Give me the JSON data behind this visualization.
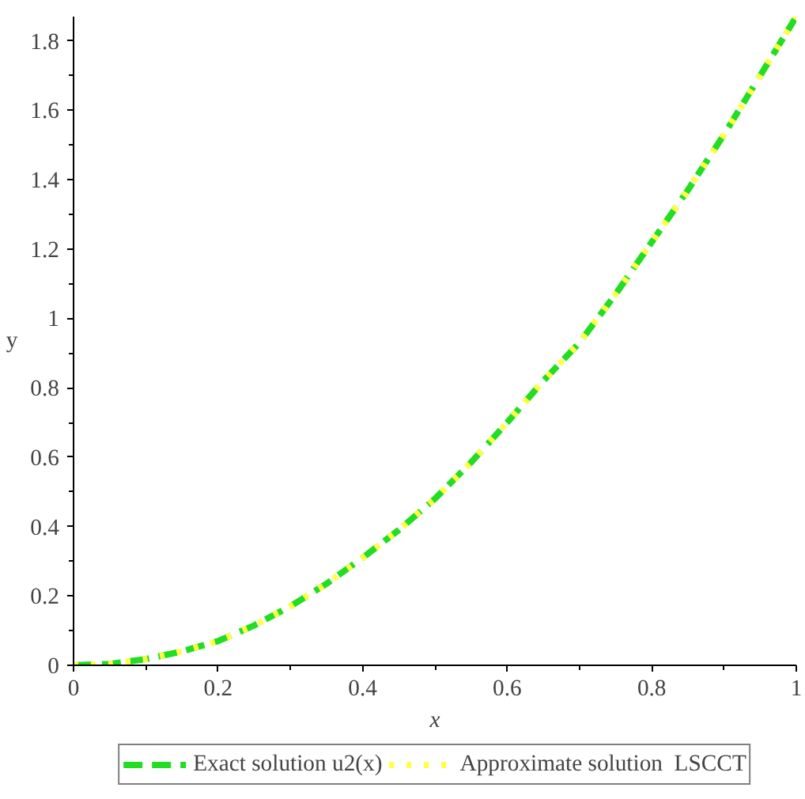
{
  "chart_data": {
    "type": "line",
    "xlabel": "x",
    "ylabel": "y",
    "x": [
      0,
      0.05,
      0.1,
      0.15,
      0.2,
      0.25,
      0.3,
      0.35,
      0.4,
      0.45,
      0.5,
      0.55,
      0.6,
      0.65,
      0.7,
      0.75,
      0.8,
      0.85,
      0.9,
      0.95,
      1
    ],
    "series": [
      {
        "name": "Exact solution u2(x)",
        "color": "#22dd22",
        "line_style": "dashed",
        "values": [
          0,
          0.004,
          0.018,
          0.04,
          0.07,
          0.115,
          0.17,
          0.235,
          0.31,
          0.39,
          0.48,
          0.585,
          0.7,
          0.82,
          0.93,
          1.07,
          1.22,
          1.37,
          1.53,
          1.7,
          1.87
        ]
      },
      {
        "name": "Approximate solution  LSCCT",
        "color": "#ffff44",
        "line_style": "dotted",
        "values": [
          0,
          0.004,
          0.018,
          0.04,
          0.07,
          0.115,
          0.17,
          0.235,
          0.31,
          0.39,
          0.48,
          0.585,
          0.7,
          0.82,
          0.93,
          1.07,
          1.22,
          1.37,
          1.53,
          1.7,
          1.87
        ]
      }
    ],
    "xlim": [
      0,
      1
    ],
    "ylim": [
      0,
      1.87
    ],
    "xticks": [
      0,
      {
        "value": 0.1,
        "label": null
      },
      0.2,
      {
        "value": 0.3,
        "label": null
      },
      0.4,
      {
        "value": 0.5,
        "label": null
      },
      0.6,
      {
        "value": 0.7,
        "label": null
      },
      0.8,
      {
        "value": 0.9,
        "label": null
      },
      1
    ],
    "yticks": [
      0,
      {
        "value": 0.1,
        "label": null
      },
      0.2,
      {
        "value": 0.3,
        "label": null
      },
      0.4,
      {
        "value": 0.5,
        "label": null
      },
      0.6,
      {
        "value": 0.7,
        "label": null
      },
      0.8,
      {
        "value": 0.9,
        "label": null
      },
      1,
      {
        "value": 1.1,
        "label": null
      },
      1.2,
      {
        "value": 1.3,
        "label": null
      },
      1.4,
      {
        "value": 1.5,
        "label": null
      },
      1.6,
      {
        "value": 1.7,
        "label": null
      },
      1.8
    ],
    "grid": false,
    "legend": "bottom",
    "marker": "none"
  }
}
